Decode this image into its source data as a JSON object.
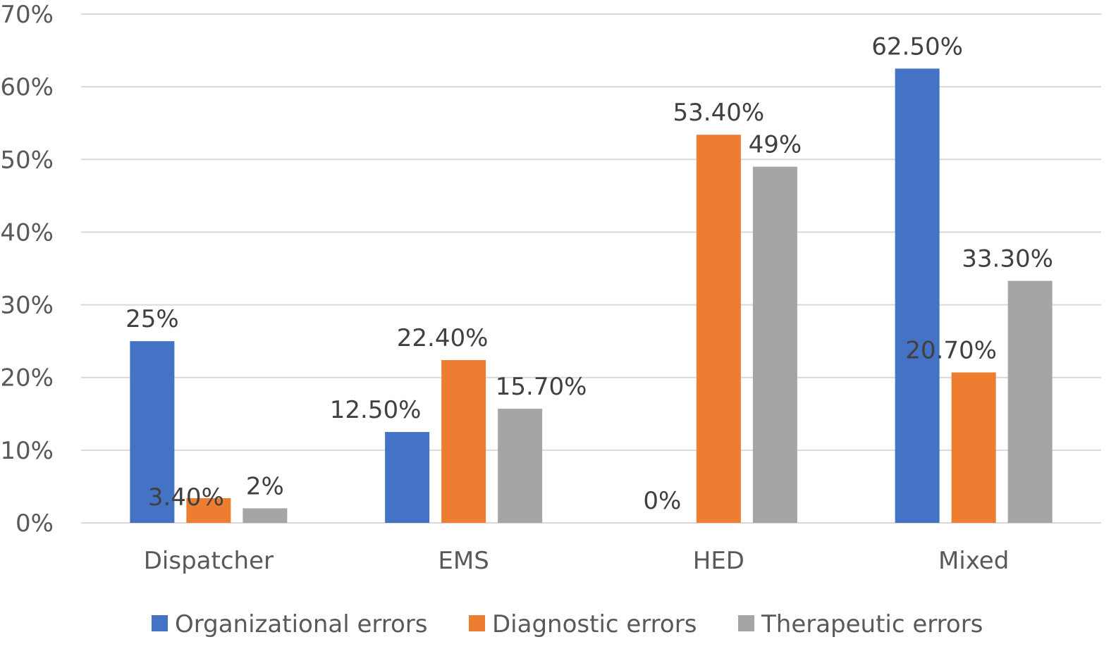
{
  "chart_data": {
    "type": "bar",
    "categories": [
      "Dispatcher",
      "EMS",
      "HED",
      "Mixed"
    ],
    "series": [
      {
        "name": "Organizational errors",
        "color": "#4472c4",
        "values": [
          25,
          12.5,
          0,
          62.5
        ],
        "labels": [
          "25%",
          "12.50%",
          "0%",
          "62.50%"
        ]
      },
      {
        "name": "Diagnostic errors",
        "color": "#ed7d31",
        "values": [
          3.4,
          22.4,
          53.4,
          20.7
        ],
        "labels": [
          "3.40%",
          "22.40%",
          "53.40%",
          "20.70%"
        ]
      },
      {
        "name": "Therapeutic errors",
        "color": "#a5a5a5",
        "values": [
          2,
          15.7,
          49,
          33.3
        ],
        "labels": [
          "2%",
          "15.70%",
          "49%",
          "33.30%"
        ]
      }
    ],
    "y_ticks": [
      "0%",
      "10%",
      "20%",
      "30%",
      "40%",
      "50%",
      "60%",
      "70%"
    ],
    "ylim": [
      0,
      70
    ],
    "grid": true,
    "legend_position": "bottom",
    "title": "",
    "xlabel": "",
    "ylabel": ""
  }
}
